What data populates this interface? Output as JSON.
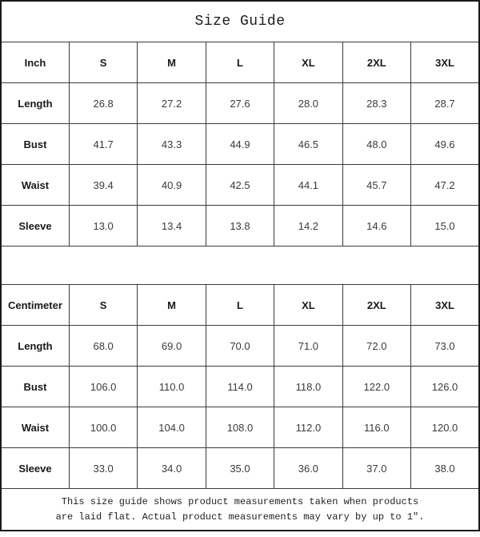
{
  "title": "Size Guide",
  "inch_table": {
    "unit_label": "Inch",
    "sizes": [
      "S",
      "M",
      "L",
      "XL",
      "2XL",
      "3XL"
    ],
    "rows": [
      {
        "label": "Length",
        "values": [
          "26.8",
          "27.2",
          "27.6",
          "28.0",
          "28.3",
          "28.7"
        ]
      },
      {
        "label": "Bust",
        "values": [
          "41.7",
          "43.3",
          "44.9",
          "46.5",
          "48.0",
          "49.6"
        ]
      },
      {
        "label": "Waist",
        "values": [
          "39.4",
          "40.9",
          "42.5",
          "44.1",
          "45.7",
          "47.2"
        ]
      },
      {
        "label": "Sleeve",
        "values": [
          "13.0",
          "13.4",
          "13.8",
          "14.2",
          "14.6",
          "15.0"
        ]
      }
    ]
  },
  "cm_table": {
    "unit_label": "Centimeter",
    "sizes": [
      "S",
      "M",
      "L",
      "XL",
      "2XL",
      "3XL"
    ],
    "rows": [
      {
        "label": "Length",
        "values": [
          "68.0",
          "69.0",
          "70.0",
          "71.0",
          "72.0",
          "73.0"
        ]
      },
      {
        "label": "Bust",
        "values": [
          "106.0",
          "110.0",
          "114.0",
          "118.0",
          "122.0",
          "126.0"
        ]
      },
      {
        "label": "Waist",
        "values": [
          "100.0",
          "104.0",
          "108.0",
          "112.0",
          "116.0",
          "120.0"
        ]
      },
      {
        "label": "Sleeve",
        "values": [
          "33.0",
          "34.0",
          "35.0",
          "36.0",
          "37.0",
          "38.0"
        ]
      }
    ]
  },
  "footer": {
    "line1": "This size guide shows product measurements taken when products",
    "line2": "are laid flat. Actual product measurements may vary by up to 1″."
  },
  "colors": {
    "background": "#ffffff",
    "border_outer": "#1a1a1a",
    "border_inner": "#3b3b3b",
    "heading_text": "#1a1a1a",
    "value_text": "#3a3a3a"
  }
}
